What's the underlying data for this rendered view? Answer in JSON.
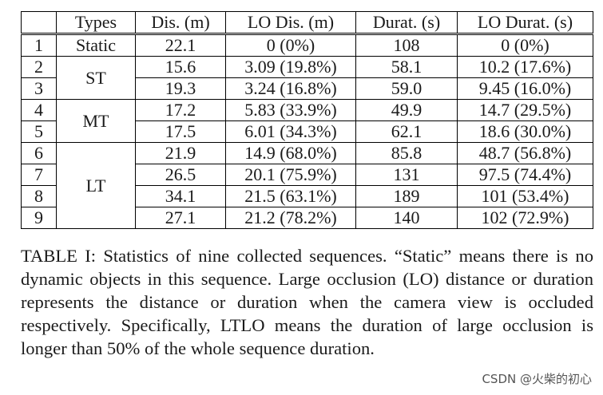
{
  "table": {
    "headers": [
      "",
      "Types",
      "Dis. (m)",
      "LO Dis. (m)",
      "Durat. (s)",
      "LO Durat. (s)"
    ],
    "rows": [
      {
        "id": "1",
        "type": "Static",
        "dis": "22.1",
        "lo_dis": "0 (0%)",
        "durat": "108",
        "lo_durat": "0 (0%)"
      },
      {
        "id": "2",
        "type": "ST",
        "dis": "15.6",
        "lo_dis": "3.09 (19.8%)",
        "durat": "58.1",
        "lo_durat": "10.2 (17.6%)"
      },
      {
        "id": "3",
        "type": "ST",
        "dis": "19.3",
        "lo_dis": "3.24 (16.8%)",
        "durat": "59.0",
        "lo_durat": "9.45 (16.0%)"
      },
      {
        "id": "4",
        "type": "MT",
        "dis": "17.2",
        "lo_dis": "5.83 (33.9%)",
        "durat": "49.9",
        "lo_durat": "14.7 (29.5%)"
      },
      {
        "id": "5",
        "type": "MT",
        "dis": "17.5",
        "lo_dis": "6.01 (34.3%)",
        "durat": "62.1",
        "lo_durat": "18.6 (30.0%)"
      },
      {
        "id": "6",
        "type": "LT",
        "dis": "21.9",
        "lo_dis": "14.9 (68.0%)",
        "durat": "85.8",
        "lo_durat": "48.7 (56.8%)"
      },
      {
        "id": "7",
        "type": "LT",
        "dis": "26.5",
        "lo_dis": "20.1 (75.9%)",
        "durat": "131",
        "lo_durat": "97.5 (74.4%)"
      },
      {
        "id": "8",
        "type": "LT",
        "dis": "34.1",
        "lo_dis": "21.5 (63.1%)",
        "durat": "189",
        "lo_durat": "101 (53.4%)"
      },
      {
        "id": "9",
        "type": "LT",
        "dis": "27.1",
        "lo_dis": "21.2 (78.2%)",
        "durat": "140",
        "lo_durat": "102 (72.9%)"
      }
    ]
  },
  "caption": "TABLE I: Statistics of nine collected sequences. “Static” means there is no dynamic objects in this sequence. Large occlusion (LO) distance or duration represents the distance or duration when the camera view is occluded respectively. Specifically, LTLO means the duration of large occlusion is longer than 50% of the whole sequence duration.",
  "watermark": "CSDN @火柴的初心"
}
